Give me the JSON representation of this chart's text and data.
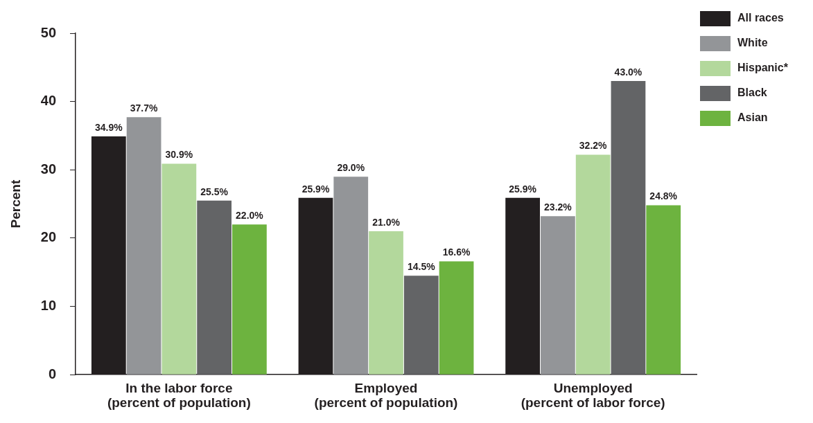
{
  "chart_data": {
    "type": "bar",
    "ylabel": "Percent",
    "categories": [
      "In the labor force\n(percent of population)",
      "Employed\n(percent of population)",
      "Unemployed\n(percent of labor force)"
    ],
    "series": [
      {
        "name": "All races",
        "color": "#231f20",
        "values": [
          34.9,
          25.9,
          25.9
        ],
        "value_labels": [
          "34.9%",
          "25.9%",
          "25.9%"
        ]
      },
      {
        "name": "White",
        "color": "#939598",
        "values": [
          37.7,
          29.0,
          23.2
        ],
        "value_labels": [
          "37.7%",
          "29.0%",
          "23.2%"
        ]
      },
      {
        "name": "Hispanic*",
        "color": "#b3d89c",
        "values": [
          30.9,
          21.0,
          32.2
        ],
        "value_labels": [
          "30.9%",
          "21.0%",
          "32.2%"
        ]
      },
      {
        "name": "Black",
        "color": "#636466",
        "values": [
          25.5,
          14.5,
          43.0
        ],
        "value_labels": [
          "25.5%",
          "14.5%",
          "43.0%"
        ]
      },
      {
        "name": "Asian",
        "color": "#6db33f",
        "values": [
          22.0,
          16.6,
          24.8
        ],
        "value_labels": [
          "22.0%",
          "16.6%",
          "24.8%"
        ]
      }
    ],
    "ylim": [
      0,
      50
    ],
    "yticks": [
      0,
      10,
      20,
      30,
      40,
      50
    ],
    "grid": false,
    "legend": "top right"
  }
}
